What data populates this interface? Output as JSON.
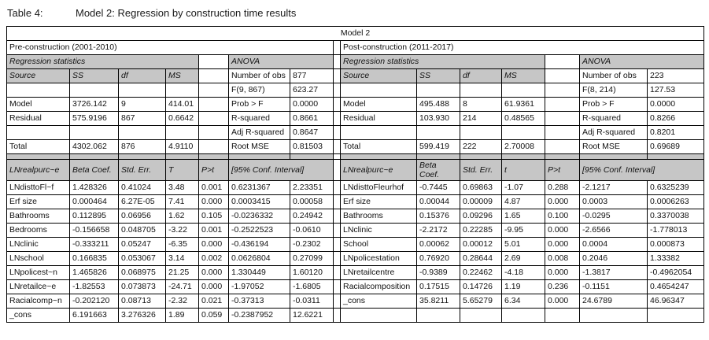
{
  "title": {
    "label": "Table 4:",
    "text": "Model 2: Regression by construction time results"
  },
  "colors": {
    "header_fill": "#c6c6c6",
    "border": "#000000",
    "background": "#ffffff",
    "text": "#111111"
  },
  "table": {
    "header": "Model 2",
    "panels": [
      {
        "period": "Pre-construction (2001-2010)",
        "reg_stats_label": "Regression statistics",
        "anova_label": "ANOVA",
        "anova_cols": [
          "Source",
          "SS",
          "df",
          "MS"
        ],
        "anova_rows": [
          [
            "",
            "",
            "",
            ""
          ],
          [
            "Model",
            "3726.142",
            "9",
            "414.01"
          ],
          [
            "Residual",
            "575.9196",
            "867",
            "0.6642"
          ],
          [
            "",
            "",
            "",
            ""
          ],
          [
            "Total",
            "4302.062",
            "876",
            "4.9110"
          ]
        ],
        "stats": [
          [
            "Number of obs",
            "877"
          ],
          [
            "F(9, 867)",
            "623.27"
          ],
          [
            "Prob > F",
            "0.0000"
          ],
          [
            "R-squared",
            "0.8661"
          ],
          [
            "Adj R-squared",
            "0.8647"
          ],
          [
            "Root MSE",
            "0.81503"
          ]
        ],
        "coef_header": [
          "LNrealpurc~e",
          "Beta Coef.",
          "Std. Err.",
          "T",
          "P>t",
          "[95% Conf. Interval]"
        ],
        "coef_rows": [
          [
            "LNdisttoFl~f",
            "1.428326",
            "0.41024",
            "3.48",
            "0.001",
            "0.6231367",
            "2.23351"
          ],
          [
            "Erf size",
            "0.000464",
            "6.27E-05",
            "7.41",
            "0.000",
            "0.0003415",
            "0.00058"
          ],
          [
            "Bathrooms",
            "0.112895",
            "0.06956",
            "1.62",
            "0.105",
            "-0.0236332",
            "0.24942"
          ],
          [
            "Bedrooms",
            "-0.156658",
            "0.048705",
            "-3.22",
            "0.001",
            "-0.2522523",
            "-0.0610"
          ],
          [
            "LNclinic",
            "-0.333211",
            "0.05247",
            "-6.35",
            "0.000",
            "-0.436194",
            "-0.2302"
          ],
          [
            "LNschool",
            "0.166835",
            "0.053067",
            "3.14",
            "0.002",
            "0.0626804",
            "0.27099"
          ],
          [
            "LNpolicest~n",
            "1.465826",
            "0.068975",
            "21.25",
            "0.000",
            "1.330449",
            "1.60120"
          ],
          [
            "LNretailce~e",
            "-1.82553",
            "0.073873",
            "-24.71",
            "0.000",
            "-1.97052",
            "-1.6805"
          ],
          [
            "Racialcomp~n",
            "-0.202120",
            "0.08713",
            "-2.32",
            "0.021",
            "-0.37313",
            "-0.0311"
          ],
          [
            "_cons",
            "6.191663",
            "3.276326",
            "1.89",
            "0.059",
            "-0.2387952",
            "12.6221"
          ]
        ]
      },
      {
        "period": "Post-construction (2011-2017)",
        "reg_stats_label": "Regression statistics",
        "anova_label": "ANOVA",
        "anova_cols": [
          "Source",
          "SS",
          "df",
          "MS"
        ],
        "anova_rows": [
          [
            "",
            "",
            "",
            ""
          ],
          [
            "Model",
            "495.488",
            "8",
            "61.9361"
          ],
          [
            "Residual",
            "103.930",
            "214",
            "0.48565"
          ],
          [
            "",
            "",
            "",
            ""
          ],
          [
            "Total",
            "599.419",
            "222",
            "2.70008"
          ]
        ],
        "stats": [
          [
            "Number of obs",
            "223"
          ],
          [
            "F(8, 214)",
            "127.53"
          ],
          [
            "Prob > F",
            "0.0000"
          ],
          [
            "R-squared",
            "0.8266"
          ],
          [
            "Adj R-squared",
            "0.8201"
          ],
          [
            "Root MSE",
            "0.69689"
          ]
        ],
        "coef_header": [
          "LNrealpurc~e",
          "Beta Coef.",
          "Std. Err.",
          "t",
          "P>t",
          "[95% Conf. Interval]"
        ],
        "coef_rows": [
          [
            "LNdisttoFleurhof",
            "-0.7445",
            "0.69863",
            "-1.07",
            "0.288",
            "-2.1217",
            "0.6325239"
          ],
          [
            "Erf size",
            "0.00044",
            "0.00009",
            "4.87",
            "0.000",
            "0.0003",
            "0.0006263"
          ],
          [
            "Bathrooms",
            "0.15376",
            "0.09296",
            "1.65",
            "0.100",
            "-0.0295",
            "0.3370038"
          ],
          [
            "LNclinic",
            "-2.2172",
            "0.22285",
            "-9.95",
            "0.000",
            "-2.6566",
            "-1.778013"
          ],
          [
            "School",
            "0.00062",
            "0.00012",
            "5.01",
            "0.000",
            "0.0004",
            "0.000873"
          ],
          [
            "LNpolicestation",
            "0.76920",
            "0.28644",
            "2.69",
            "0.008",
            "0.2046",
            "1.33382"
          ],
          [
            "LNretailcentre",
            "-0.9389",
            "0.22462",
            "-4.18",
            "0.000",
            "-1.3817",
            "-0.4962054"
          ],
          [
            "Racialcomposition",
            "0.17515",
            "0.14726",
            "1.19",
            "0.236",
            "-0.1151",
            "0.4654247"
          ],
          [
            "_cons",
            "35.8211",
            "5.65279",
            "6.34",
            "0.000",
            "24.6789",
            "46.96347"
          ],
          [
            "",
            "",
            "",
            "",
            "",
            "",
            ""
          ]
        ]
      }
    ]
  }
}
